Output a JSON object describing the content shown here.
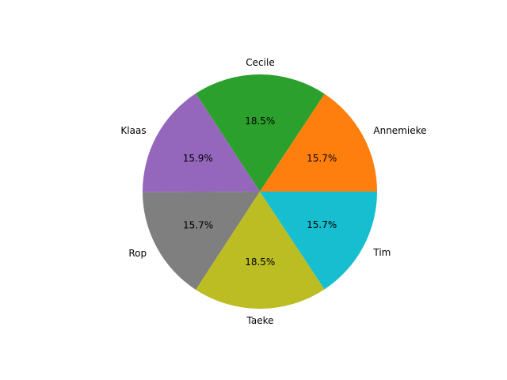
{
  "chart_data": {
    "type": "pie",
    "title": "",
    "start_angle_deg": 0,
    "direction": "counterclockwise",
    "slices": [
      {
        "label": "Annemieke",
        "value": 15.7,
        "pct_label": "15.7%",
        "color": "#ff7f0e"
      },
      {
        "label": "Cecile",
        "value": 18.5,
        "pct_label": "18.5%",
        "color": "#2ca02c"
      },
      {
        "label": "Klaas",
        "value": 15.9,
        "pct_label": "15.9%",
        "color": "#9467bd"
      },
      {
        "label": "Rop",
        "value": 15.7,
        "pct_label": "15.7%",
        "color": "#7f7f7f"
      },
      {
        "label": "Taeke",
        "value": 18.5,
        "pct_label": "18.5%",
        "color": "#bcbd22"
      },
      {
        "label": "Tim",
        "value": 15.7,
        "pct_label": "15.7%",
        "color": "#17becf"
      }
    ]
  }
}
